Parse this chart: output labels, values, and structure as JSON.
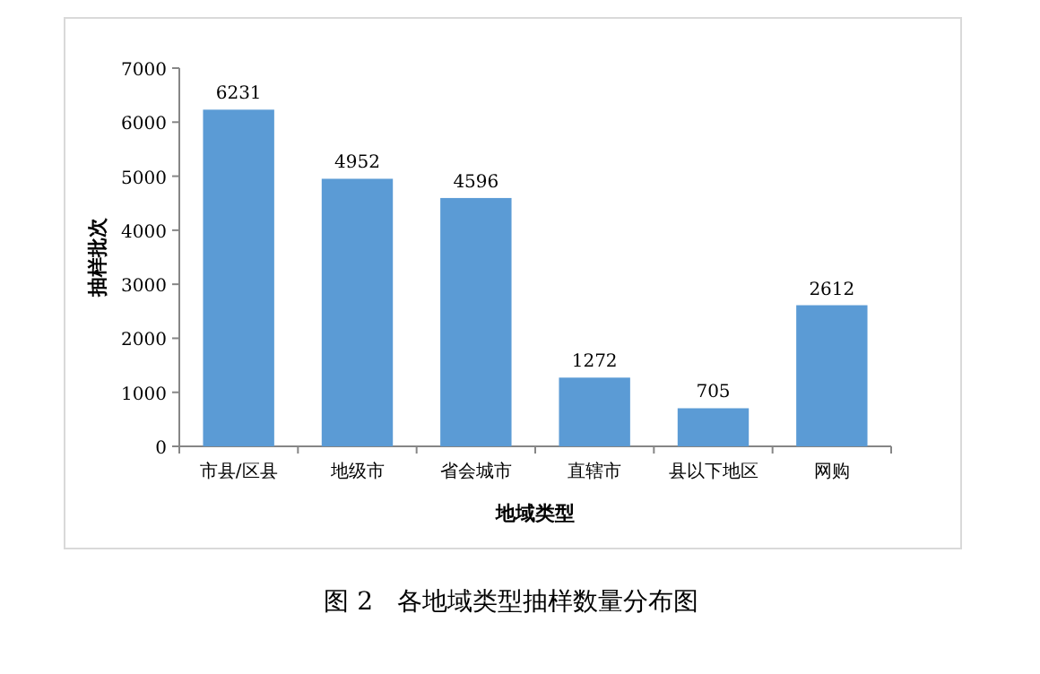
{
  "chart_data": {
    "type": "bar",
    "title": "图 2   各地域类型抽样数量分布图",
    "xlabel": "地域类型",
    "ylabel": "抽样批次",
    "categories": [
      "市县/区县",
      "地级市",
      "省会城市",
      "直辖市",
      "县以下地区",
      "网购"
    ],
    "values": [
      6231,
      4952,
      4596,
      1272,
      705,
      2612
    ],
    "color": "#5b9bd5",
    "ylim": [
      0,
      7000
    ],
    "yticks": [
      0,
      1000,
      2000,
      3000,
      4000,
      5000,
      6000,
      7000
    ],
    "data_labels": true,
    "grid": false
  }
}
